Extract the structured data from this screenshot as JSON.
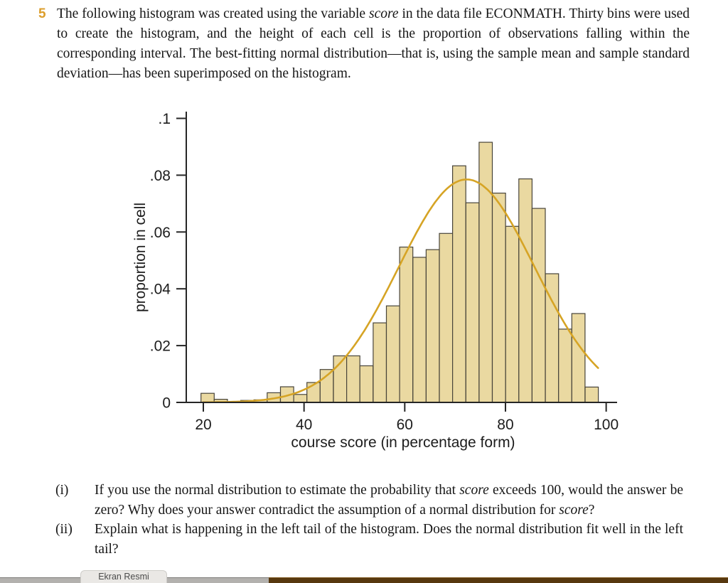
{
  "problem": {
    "number": "5",
    "statement": [
      {
        "t": "The following histogram was created using the variable "
      },
      {
        "t": "score",
        "i": true
      },
      {
        "t": " in the data file ECONMATH. Thirty bins were used to create the histogram, and the height of each cell is the proportion of observations falling within the corresponding interval. The best-fitting normal distribution—that is, using the sample mean and sample standard deviation—has been superimposed on the histogram."
      }
    ]
  },
  "chart_data": {
    "type": "bar",
    "title": "",
    "xlabel": "course score (in percentage form)",
    "ylabel": "proportion in cell",
    "xlim": [
      19.5,
      102
    ],
    "ylim": [
      0,
      0.1
    ],
    "grid": false,
    "legend": "none",
    "x_ticks": [
      20,
      40,
      60,
      80,
      100
    ],
    "x_tick_labels": [
      "20",
      "40",
      "60",
      "80",
      "100"
    ],
    "y_ticks": [
      {
        "v": 0.1,
        "label": ".1"
      },
      {
        "v": 0.08,
        "label": ".08"
      },
      {
        "v": 0.06,
        "label": ".06"
      },
      {
        "v": 0.04,
        "label": ".04"
      },
      {
        "v": 0.02,
        "label": ".02"
      },
      {
        "v": 0,
        "label": "0"
      }
    ],
    "bin_start": 19.53,
    "bin_width": 2.6303,
    "values": [
      0.0032,
      0.0011,
      0,
      0.0007,
      0.0009,
      0.0034,
      0.0055,
      0.0028,
      0.007,
      0.0116,
      0.0164,
      0.0164,
      0.0129,
      0.028,
      0.034,
      0.0547,
      0.0511,
      0.0538,
      0.0595,
      0.0833,
      0.0703,
      0.0916,
      0.0737,
      0.062,
      0.0787,
      0.0683,
      0.0453,
      0.0258,
      0.0313,
      0.0054
    ],
    "normal_curve": {
      "mean": 72.3,
      "sd": 13.5,
      "peak": 0.0785,
      "x_min": 20,
      "x_max": 98.6
    },
    "bar_fill": "#ead9a1",
    "bar_stroke": "#48443a",
    "curve_color": "#d6a425",
    "axis_color": "#262626"
  },
  "questions": [
    {
      "label": "(i)",
      "segments": [
        {
          "t": "If you use the normal distribution to estimate the probability that "
        },
        {
          "t": "score",
          "i": true
        },
        {
          "t": " exceeds 100, would the answer be zero? Why does your answer contradict the assumption of a normal distribution for "
        },
        {
          "t": "score",
          "i": true
        },
        {
          "t": "?"
        }
      ]
    },
    {
      "label": "(ii)",
      "segments": [
        {
          "t": "Explain what is happening in the left tail of the histogram. Does the normal distribution fit well in the left tail?"
        }
      ]
    }
  ],
  "taskbar": {
    "tooltip": "Ekran Resmi"
  }
}
